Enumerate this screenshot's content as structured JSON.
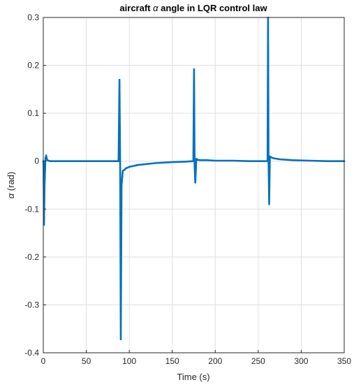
{
  "chart_data": {
    "type": "line",
    "title_parts": [
      "aircraft ",
      "α",
      " angle in LQR control law"
    ],
    "xlabel": "Time (s)",
    "ylabel_parts": [
      "α",
      " (rad)"
    ],
    "xlim": [
      0,
      350
    ],
    "ylim": [
      -0.4,
      0.3
    ],
    "xticks": [
      "0",
      "50",
      "100",
      "150",
      "200",
      "250",
      "300",
      "350"
    ],
    "yticks": [
      "-0.4",
      "-0.3",
      "-0.2",
      "-0.1",
      "0",
      "0.1",
      "0.2",
      "0.3"
    ],
    "grid": true,
    "series": [
      {
        "color": "#0072BD",
        "x": [
          0,
          0.3,
          0.8,
          1.5,
          2.5,
          3.3,
          4.5,
          6,
          8,
          10,
          20,
          40,
          60,
          87.5,
          88.6,
          89.4,
          90.1,
          91.0,
          92.5,
          94.5,
          96,
          100,
          110,
          130,
          150,
          165,
          174.5,
          175.3,
          176.0,
          176.8,
          178.0,
          179.5,
          182,
          190,
          200,
          220,
          240,
          260.8,
          261.4,
          262.0,
          262.7,
          263.5,
          265,
          268,
          275,
          290,
          310,
          330,
          350
        ],
        "y": [
          0,
          -0.005,
          -0.133,
          -0.05,
          0.005,
          0.012,
          0.002,
          0.001,
          0,
          0,
          0,
          0,
          0,
          0,
          0.17,
          -0.01,
          -0.372,
          -0.05,
          -0.02,
          -0.018,
          -0.015,
          -0.012,
          -0.008,
          -0.004,
          -0.002,
          -0.001,
          0,
          0.192,
          -0.01,
          -0.045,
          0.005,
          0.003,
          0.002,
          0.002,
          0.001,
          0.001,
          0,
          0,
          0.3,
          0,
          -0.09,
          0.01,
          0.008,
          0.006,
          0.004,
          0.002,
          0.001,
          0,
          0
        ]
      }
    ]
  }
}
